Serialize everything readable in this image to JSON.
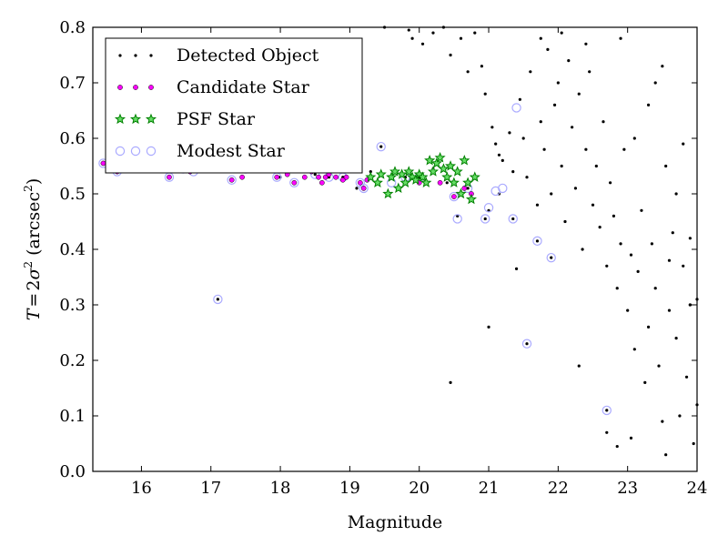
{
  "chart_data": {
    "type": "scatter",
    "title": "",
    "xlabel": "Magnitude",
    "ylabel": "T = 2σ² (arcsec²)",
    "ylabel_parts": {
      "lhs": "T",
      "eq": "=",
      "coef": "2",
      "sym": "σ",
      "pow": "2",
      "unit": "arcsec",
      "unit_pow": "2"
    },
    "xlim": [
      15.3,
      24
    ],
    "ylim": [
      0.0,
      0.8
    ],
    "xticks": [
      16,
      17,
      18,
      19,
      20,
      21,
      22,
      23,
      24
    ],
    "yticks": [
      0.0,
      0.1,
      0.2,
      0.3,
      0.4,
      0.5,
      0.6,
      0.7,
      0.8
    ],
    "xtick_labels": [
      "16",
      "17",
      "18",
      "19",
      "20",
      "21",
      "22",
      "23",
      "24"
    ],
    "ytick_labels": [
      "0.0",
      "0.1",
      "0.2",
      "0.3",
      "0.4",
      "0.5",
      "0.6",
      "0.7",
      "0.8"
    ],
    "grid": false,
    "legend_position": "top-left",
    "series": [
      {
        "name": "Detected Object",
        "marker": "dot",
        "color": "#000000",
        "points": [
          [
            15.45,
            0.555
          ],
          [
            15.6,
            0.545
          ],
          [
            15.8,
            0.55
          ],
          [
            16.1,
            0.55
          ],
          [
            16.4,
            0.53
          ],
          [
            16.6,
            0.545
          ],
          [
            16.8,
            0.54
          ],
          [
            17.1,
            0.31
          ],
          [
            17.3,
            0.525
          ],
          [
            17.5,
            0.545
          ],
          [
            17.8,
            0.54
          ],
          [
            18.0,
            0.53
          ],
          [
            18.2,
            0.52
          ],
          [
            18.5,
            0.535
          ],
          [
            18.7,
            0.53
          ],
          [
            18.9,
            0.53
          ],
          [
            19.1,
            0.51
          ],
          [
            19.3,
            0.54
          ],
          [
            19.45,
            0.585
          ],
          [
            19.6,
            0.53
          ],
          [
            19.8,
            0.53
          ],
          [
            20.0,
            0.53
          ],
          [
            20.2,
            0.545
          ],
          [
            20.4,
            0.52
          ],
          [
            20.5,
            0.495
          ],
          [
            20.55,
            0.46
          ],
          [
            20.7,
            0.51
          ],
          [
            20.95,
            0.455
          ],
          [
            21.0,
            0.47
          ],
          [
            21.15,
            0.5
          ],
          [
            21.35,
            0.455
          ],
          [
            21.55,
            0.23
          ],
          [
            21.7,
            0.415
          ],
          [
            21.9,
            0.385
          ],
          [
            22.7,
            0.11
          ],
          [
            20.45,
            0.16
          ],
          [
            21.0,
            0.26
          ],
          [
            21.4,
            0.365
          ],
          [
            19.5,
            0.8
          ],
          [
            19.85,
            0.795
          ],
          [
            19.9,
            0.78
          ],
          [
            20.05,
            0.77
          ],
          [
            20.2,
            0.79
          ],
          [
            20.35,
            0.8
          ],
          [
            20.45,
            0.75
          ],
          [
            20.6,
            0.78
          ],
          [
            20.7,
            0.72
          ],
          [
            20.8,
            0.79
          ],
          [
            20.9,
            0.73
          ],
          [
            20.95,
            0.68
          ],
          [
            21.05,
            0.62
          ],
          [
            21.1,
            0.59
          ],
          [
            21.15,
            0.57
          ],
          [
            21.2,
            0.56
          ],
          [
            21.3,
            0.61
          ],
          [
            21.35,
            0.54
          ],
          [
            21.45,
            0.67
          ],
          [
            21.5,
            0.6
          ],
          [
            21.55,
            0.53
          ],
          [
            21.6,
            0.72
          ],
          [
            21.7,
            0.48
          ],
          [
            21.75,
            0.63
          ],
          [
            21.8,
            0.58
          ],
          [
            21.85,
            0.76
          ],
          [
            21.9,
            0.5
          ],
          [
            21.95,
            0.66
          ],
          [
            22.0,
            0.7
          ],
          [
            22.05,
            0.55
          ],
          [
            22.1,
            0.45
          ],
          [
            22.15,
            0.74
          ],
          [
            22.2,
            0.62
          ],
          [
            22.25,
            0.51
          ],
          [
            22.3,
            0.68
          ],
          [
            22.35,
            0.4
          ],
          [
            22.4,
            0.58
          ],
          [
            22.45,
            0.72
          ],
          [
            22.5,
            0.48
          ],
          [
            22.55,
            0.55
          ],
          [
            22.6,
            0.44
          ],
          [
            22.65,
            0.63
          ],
          [
            22.7,
            0.37
          ],
          [
            22.75,
            0.52
          ],
          [
            22.8,
            0.46
          ],
          [
            22.85,
            0.33
          ],
          [
            22.9,
            0.41
          ],
          [
            22.95,
            0.58
          ],
          [
            23.0,
            0.29
          ],
          [
            23.05,
            0.39
          ],
          [
            23.1,
            0.22
          ],
          [
            23.15,
            0.36
          ],
          [
            23.2,
            0.47
          ],
          [
            23.25,
            0.16
          ],
          [
            23.3,
            0.26
          ],
          [
            23.35,
            0.41
          ],
          [
            23.4,
            0.33
          ],
          [
            23.45,
            0.19
          ],
          [
            23.5,
            0.09
          ],
          [
            23.55,
            0.55
          ],
          [
            23.6,
            0.29
          ],
          [
            23.65,
            0.43
          ],
          [
            23.7,
            0.24
          ],
          [
            23.75,
            0.1
          ],
          [
            23.8,
            0.37
          ],
          [
            23.85,
            0.17
          ],
          [
            23.9,
            0.3
          ],
          [
            23.95,
            0.05
          ],
          [
            24.0,
            0.12
          ],
          [
            23.55,
            0.03
          ],
          [
            22.7,
            0.07
          ],
          [
            22.85,
            0.045
          ],
          [
            23.05,
            0.06
          ],
          [
            22.3,
            0.19
          ],
          [
            23.9,
            0.3
          ],
          [
            21.75,
            0.78
          ],
          [
            22.05,
            0.79
          ],
          [
            22.4,
            0.77
          ],
          [
            22.9,
            0.78
          ],
          [
            23.1,
            0.6
          ],
          [
            23.3,
            0.66
          ],
          [
            23.5,
            0.73
          ],
          [
            23.8,
            0.59
          ],
          [
            23.4,
            0.7
          ],
          [
            23.7,
            0.5
          ],
          [
            23.6,
            0.38
          ],
          [
            23.9,
            0.42
          ],
          [
            24.0,
            0.31
          ]
        ]
      },
      {
        "name": "Candidate Star",
        "marker": "circle-magenta",
        "color": "#ff00ff",
        "points": [
          [
            15.45,
            0.555
          ],
          [
            15.6,
            0.545
          ],
          [
            15.65,
            0.54
          ],
          [
            16.0,
            0.55
          ],
          [
            16.2,
            0.545
          ],
          [
            16.4,
            0.53
          ],
          [
            16.5,
            0.55
          ],
          [
            16.6,
            0.545
          ],
          [
            16.7,
            0.54
          ],
          [
            16.8,
            0.545
          ],
          [
            17.3,
            0.525
          ],
          [
            17.45,
            0.53
          ],
          [
            17.5,
            0.545
          ],
          [
            17.8,
            0.545
          ],
          [
            17.95,
            0.53
          ],
          [
            18.1,
            0.535
          ],
          [
            18.2,
            0.52
          ],
          [
            18.35,
            0.53
          ],
          [
            18.45,
            0.54
          ],
          [
            18.55,
            0.53
          ],
          [
            18.6,
            0.52
          ],
          [
            18.65,
            0.53
          ],
          [
            18.7,
            0.535
          ],
          [
            18.8,
            0.53
          ],
          [
            18.9,
            0.525
          ],
          [
            18.95,
            0.53
          ],
          [
            19.15,
            0.52
          ],
          [
            19.2,
            0.51
          ],
          [
            19.25,
            0.525
          ],
          [
            19.6,
            0.53
          ],
          [
            19.8,
            0.52
          ],
          [
            20.0,
            0.52
          ],
          [
            20.3,
            0.52
          ],
          [
            20.5,
            0.495
          ],
          [
            20.65,
            0.51
          ],
          [
            20.75,
            0.5
          ]
        ]
      },
      {
        "name": "PSF Star",
        "marker": "star-green",
        "color": "#008000",
        "points": [
          [
            19.3,
            0.53
          ],
          [
            19.4,
            0.52
          ],
          [
            19.45,
            0.535
          ],
          [
            19.55,
            0.5
          ],
          [
            19.6,
            0.53
          ],
          [
            19.65,
            0.54
          ],
          [
            19.7,
            0.51
          ],
          [
            19.75,
            0.535
          ],
          [
            19.8,
            0.52
          ],
          [
            19.85,
            0.54
          ],
          [
            19.9,
            0.53
          ],
          [
            19.95,
            0.525
          ],
          [
            20.0,
            0.535
          ],
          [
            20.05,
            0.53
          ],
          [
            20.1,
            0.52
          ],
          [
            20.15,
            0.56
          ],
          [
            20.2,
            0.54
          ],
          [
            20.25,
            0.555
          ],
          [
            20.3,
            0.565
          ],
          [
            20.35,
            0.545
          ],
          [
            20.4,
            0.53
          ],
          [
            20.45,
            0.55
          ],
          [
            20.5,
            0.52
          ],
          [
            20.55,
            0.54
          ],
          [
            20.6,
            0.5
          ],
          [
            20.65,
            0.56
          ],
          [
            20.7,
            0.52
          ],
          [
            20.75,
            0.49
          ],
          [
            20.8,
            0.53
          ]
        ]
      },
      {
        "name": "Modest Star",
        "marker": "ring-lavender",
        "color": "#aaaaff",
        "points": [
          [
            15.45,
            0.555
          ],
          [
            15.6,
            0.545
          ],
          [
            15.65,
            0.54
          ],
          [
            16.0,
            0.55
          ],
          [
            16.4,
            0.53
          ],
          [
            16.6,
            0.545
          ],
          [
            16.75,
            0.54
          ],
          [
            17.1,
            0.31
          ],
          [
            17.3,
            0.525
          ],
          [
            17.5,
            0.545
          ],
          [
            17.95,
            0.53
          ],
          [
            18.2,
            0.52
          ],
          [
            18.5,
            0.535
          ],
          [
            18.7,
            0.53
          ],
          [
            18.9,
            0.53
          ],
          [
            19.15,
            0.52
          ],
          [
            19.2,
            0.51
          ],
          [
            19.45,
            0.585
          ],
          [
            19.6,
            0.52
          ],
          [
            19.8,
            0.53
          ],
          [
            20.0,
            0.53
          ],
          [
            20.5,
            0.495
          ],
          [
            20.55,
            0.455
          ],
          [
            20.7,
            0.51
          ],
          [
            20.95,
            0.455
          ],
          [
            21.0,
            0.475
          ],
          [
            21.1,
            0.505
          ],
          [
            21.35,
            0.455
          ],
          [
            21.55,
            0.23
          ],
          [
            21.7,
            0.415
          ],
          [
            21.9,
            0.385
          ],
          [
            22.7,
            0.11
          ],
          [
            21.2,
            0.51
          ],
          [
            21.4,
            0.655
          ]
        ]
      }
    ]
  }
}
